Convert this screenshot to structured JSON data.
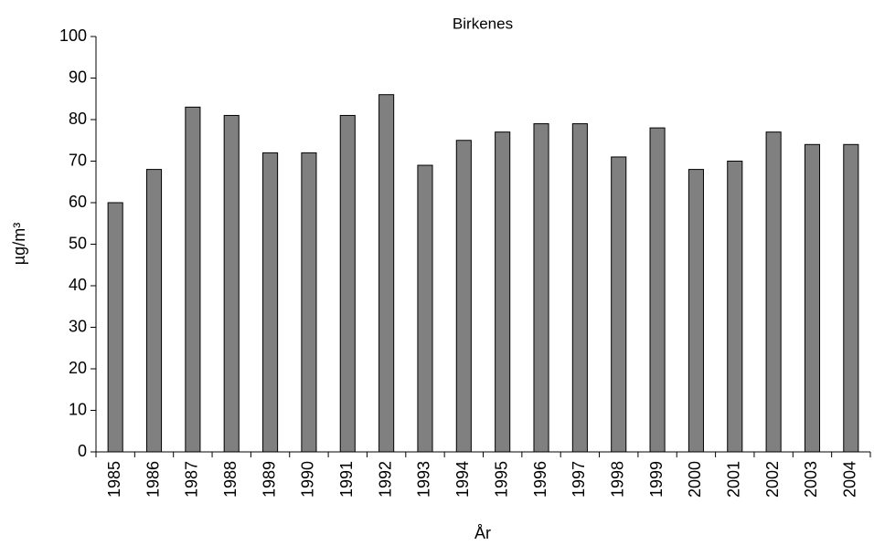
{
  "chart_data": {
    "type": "bar",
    "title": "Birkenes",
    "x_label": "År",
    "y_label": "µg/m³",
    "categories": [
      "1985",
      "1986",
      "1987",
      "1988",
      "1989",
      "1990",
      "1991",
      "1992",
      "1993",
      "1994",
      "1995",
      "1996",
      "1997",
      "1998",
      "1999",
      "2000",
      "2001",
      "2002",
      "2003",
      "2004"
    ],
    "values": [
      60,
      68,
      83,
      81,
      72,
      72,
      81,
      86,
      69,
      75,
      77,
      79,
      79,
      71,
      78,
      68,
      70,
      77,
      74,
      74
    ],
    "color": "#808080",
    "ylim": [
      0,
      100
    ],
    "yticks": [
      0,
      10,
      20,
      30,
      40,
      50,
      60,
      70,
      80,
      90,
      100
    ],
    "grid": false
  }
}
